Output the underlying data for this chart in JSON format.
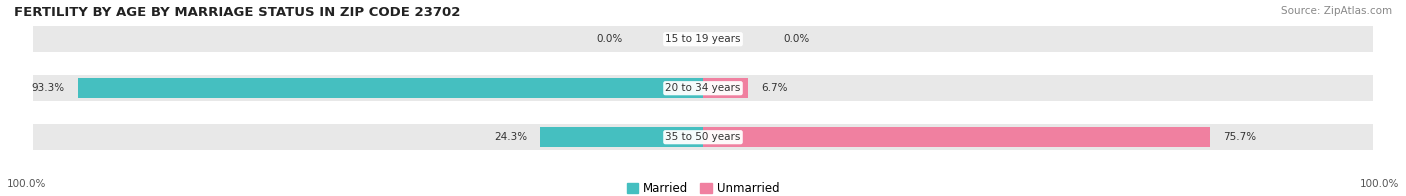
{
  "title": "FERTILITY BY AGE BY MARRIAGE STATUS IN ZIP CODE 23702",
  "source": "Source: ZipAtlas.com",
  "categories": [
    "15 to 19 years",
    "20 to 34 years",
    "35 to 50 years"
  ],
  "married": [
    0.0,
    93.3,
    24.3
  ],
  "unmarried": [
    0.0,
    6.7,
    75.7
  ],
  "married_color": "#45bfc0",
  "unmarried_color": "#f080a0",
  "bar_bg_color": "#e8e8e8",
  "title_fontsize": 9.5,
  "source_fontsize": 7.5,
  "label_fontsize": 7.5,
  "category_fontsize": 7.5,
  "legend_fontsize": 8.5,
  "axis_label_fontsize": 7.5,
  "fig_bg_color": "#ffffff",
  "max_val": 100.0
}
